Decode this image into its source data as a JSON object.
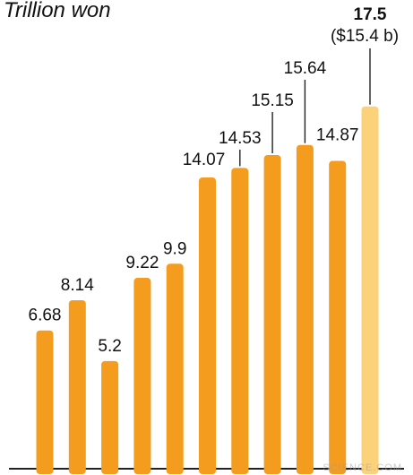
{
  "chart_data": {
    "type": "bar",
    "unit_label": "Trillion won",
    "categories": [
      "",
      "",
      "",
      "",
      "",
      "",
      "",
      "",
      "",
      "",
      ""
    ],
    "values": [
      6.68,
      8.14,
      5.2,
      9.22,
      9.9,
      14.07,
      14.53,
      15.15,
      15.64,
      14.87,
      17.5
    ],
    "value_labels": [
      "6.68",
      "8.14",
      "5.2",
      "9.22",
      "9.9",
      "14.07",
      "14.53",
      "15.15",
      "15.64",
      "14.87",
      "17.5"
    ],
    "highlight_index": 10,
    "highlight_sublabel": "($15.4 b)",
    "ylim": [
      0,
      19
    ],
    "grid": false,
    "colors": {
      "bar": "#f39c1d",
      "highlight_bar": "#fbd27a",
      "label_text": "#111111",
      "leader_line": "#222222",
      "baseline": "#222222"
    }
  },
  "watermark": "SCIENCE.COM"
}
